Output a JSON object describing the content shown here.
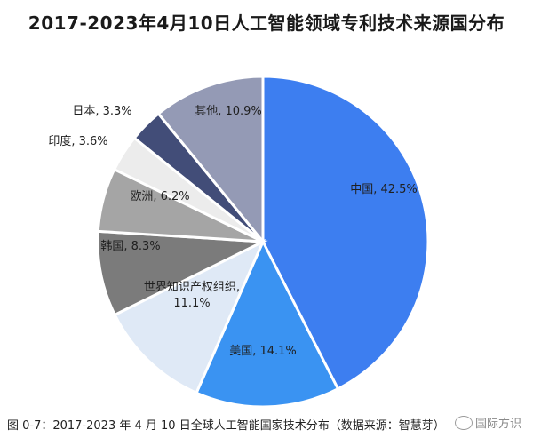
{
  "title": "2017-2023年4月10日人工智能领域专利技术来源国分布",
  "caption": "图 0-7：2017-2023 年 4 月 10 日全球人工智能国家技术分布（数据来源：智慧芽）",
  "watermark": "国际方识",
  "chart_data": {
    "type": "pie",
    "title": "2017-2023年4月10日人工智能领域专利技术来源国分布",
    "slices": [
      {
        "label": "中国",
        "value": 42.5,
        "text": "中国, 42.5%",
        "color": "#3d7ef0"
      },
      {
        "label": "美国",
        "value": 14.1,
        "text": "美国, 14.1%",
        "color": "#3a93f2"
      },
      {
        "label": "世界知识产权组织",
        "value": 11.1,
        "text": "世界知识产权组织,",
        "text2": "11.1%",
        "color": "#dfe9f6"
      },
      {
        "label": "韩国",
        "value": 8.3,
        "text": "韩国, 8.3%",
        "color": "#7b7b7b"
      },
      {
        "label": "欧洲",
        "value": 6.2,
        "text": "欧洲, 6.2%",
        "color": "#a5a5a5"
      },
      {
        "label": "印度",
        "value": 3.6,
        "text": "印度, 3.6%",
        "color": "#ececec"
      },
      {
        "label": "日本",
        "value": 3.3,
        "text": "日本, 3.3%",
        "color": "#424d78"
      },
      {
        "label": "其他",
        "value": 10.9,
        "text": "其他, 10.9%",
        "color": "#949ab5"
      }
    ]
  }
}
